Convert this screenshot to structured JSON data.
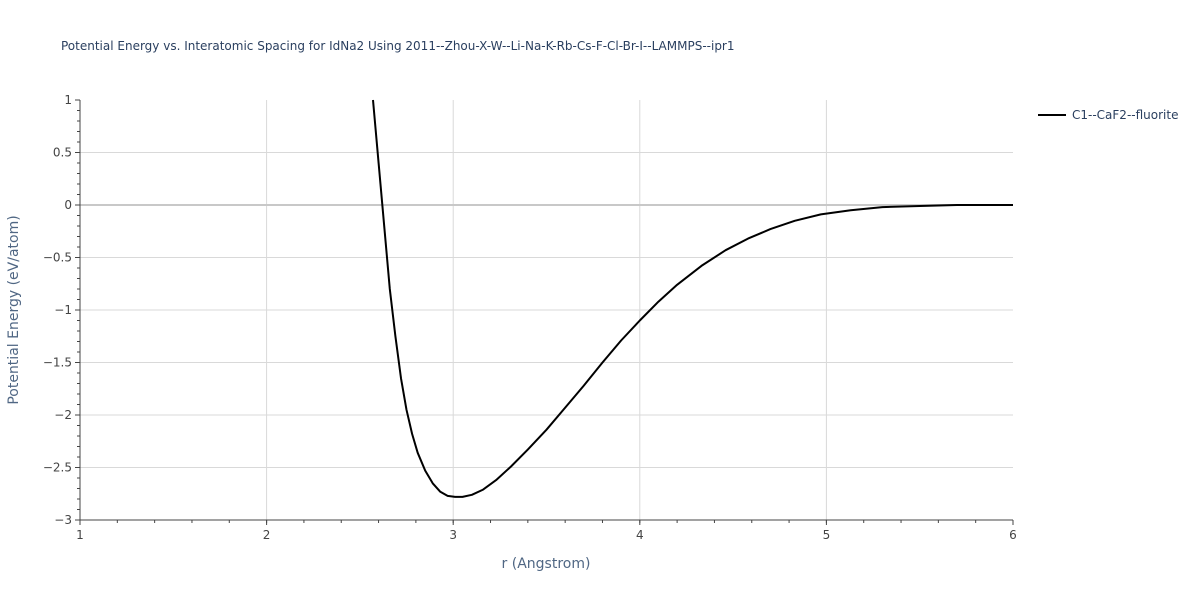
{
  "chart_data": {
    "type": "line",
    "title": "Potential Energy vs. Interatomic Spacing for IdNa2 Using 2011--Zhou-X-W--Li-Na-K-Rb-Cs-F-Cl-Br-I--LAMMPS--ipr1",
    "xlabel": "r (Angstrom)",
    "ylabel": "Potential Energy (eV/atom)",
    "xlim": [
      1,
      6
    ],
    "ylim": [
      -3,
      1
    ],
    "x_ticks": [
      "1",
      "2",
      "3",
      "4",
      "5",
      "6"
    ],
    "y_ticks": [
      "1",
      "0.5",
      "0",
      "−0.5",
      "−1",
      "−1.5",
      "−2",
      "−2.5",
      "−3"
    ],
    "grid": true,
    "legend_position": "top-right",
    "colors": {
      "series": "#000000",
      "grid": "#d9d9d9",
      "zero_line": "#c8c8c8"
    },
    "series": [
      {
        "name": "C1--CaF2--fluorite",
        "x": [
          2.57,
          2.6,
          2.63,
          2.66,
          2.69,
          2.72,
          2.75,
          2.78,
          2.81,
          2.85,
          2.89,
          2.93,
          2.97,
          3.01,
          3.05,
          3.1,
          3.16,
          3.23,
          3.31,
          3.4,
          3.5,
          3.6,
          3.7,
          3.8,
          3.9,
          4.0,
          4.1,
          4.2,
          4.33,
          4.46,
          4.58,
          4.7,
          4.83,
          4.97,
          5.13,
          5.3,
          5.5,
          5.7,
          5.85,
          6.0
        ],
        "y": [
          1.0,
          0.4,
          -0.2,
          -0.8,
          -1.25,
          -1.65,
          -1.95,
          -2.18,
          -2.36,
          -2.53,
          -2.65,
          -2.73,
          -2.77,
          -2.78,
          -2.78,
          -2.76,
          -2.71,
          -2.62,
          -2.49,
          -2.33,
          -2.14,
          -1.93,
          -1.72,
          -1.5,
          -1.29,
          -1.1,
          -0.92,
          -0.76,
          -0.58,
          -0.43,
          -0.32,
          -0.23,
          -0.15,
          -0.09,
          -0.05,
          -0.02,
          -0.01,
          0.0,
          0.0,
          0.0
        ]
      }
    ]
  }
}
